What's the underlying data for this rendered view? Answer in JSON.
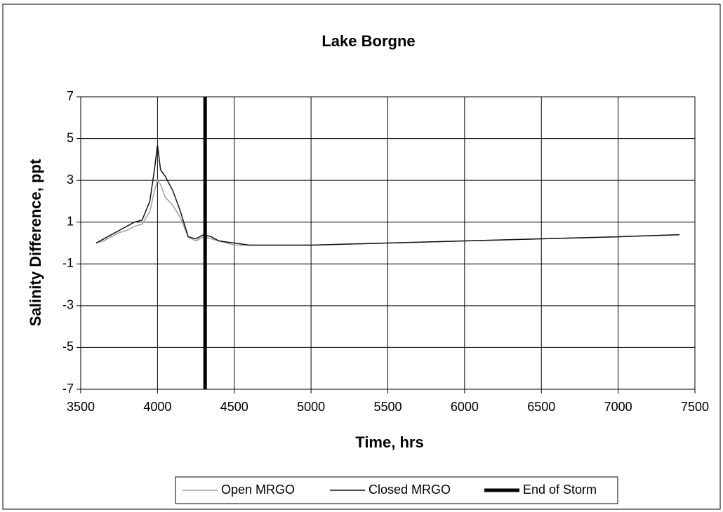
{
  "chart_data": {
    "type": "line",
    "title": "Lake Borgne",
    "x_label": "Time, hrs",
    "y_label": "Salinity Difference, ppt",
    "xlim": [
      3500,
      7500
    ],
    "xticks": [
      3500,
      4000,
      4500,
      5000,
      5500,
      6000,
      6500,
      7000,
      7500
    ],
    "ylim": [
      -7,
      7
    ],
    "yticks": [
      7,
      5,
      3,
      1,
      -1,
      -3,
      -5,
      -7
    ],
    "grid": true,
    "legend": "bottom",
    "series": [
      {
        "name": "Open MRGO",
        "color": "#a0a0a0",
        "width": 1.5,
        "x": [
          3600,
          3650,
          3700,
          3750,
          3800,
          3850,
          3900,
          3950,
          3980,
          4000,
          4020,
          4050,
          4100,
          4150,
          4200,
          4250,
          4300,
          4350,
          4400,
          4500,
          4600,
          5000,
          5500,
          6000,
          6500,
          7000,
          7400
        ],
        "values": [
          0,
          0.1,
          0.3,
          0.5,
          0.6,
          0.8,
          0.9,
          1.5,
          2.5,
          3.0,
          2.8,
          2.2,
          1.8,
          1.2,
          0.3,
          0.1,
          0.3,
          0.2,
          0.1,
          -0.1,
          -0.1,
          -0.1,
          0,
          0.1,
          0.2,
          0.3,
          0.4
        ]
      },
      {
        "name": "Closed MRGO",
        "color": "#111111",
        "width": 1.5,
        "x": [
          3600,
          3650,
          3700,
          3750,
          3800,
          3850,
          3900,
          3950,
          3980,
          4000,
          4020,
          4050,
          4100,
          4150,
          4200,
          4250,
          4300,
          4350,
          4400,
          4500,
          4600,
          5000,
          5500,
          6000,
          6500,
          7000,
          7400
        ],
        "values": [
          0,
          0.2,
          0.4,
          0.6,
          0.8,
          1.0,
          1.1,
          2.0,
          3.5,
          4.7,
          3.5,
          3.2,
          2.5,
          1.5,
          0.3,
          0.2,
          0.4,
          0.3,
          0.1,
          0,
          -0.1,
          -0.1,
          0,
          0.1,
          0.2,
          0.3,
          0.4
        ]
      },
      {
        "name": "End of Storm",
        "color": "#000000",
        "width": 5,
        "x": [
          4310,
          4310
        ],
        "values": [
          -7,
          7
        ]
      }
    ]
  }
}
